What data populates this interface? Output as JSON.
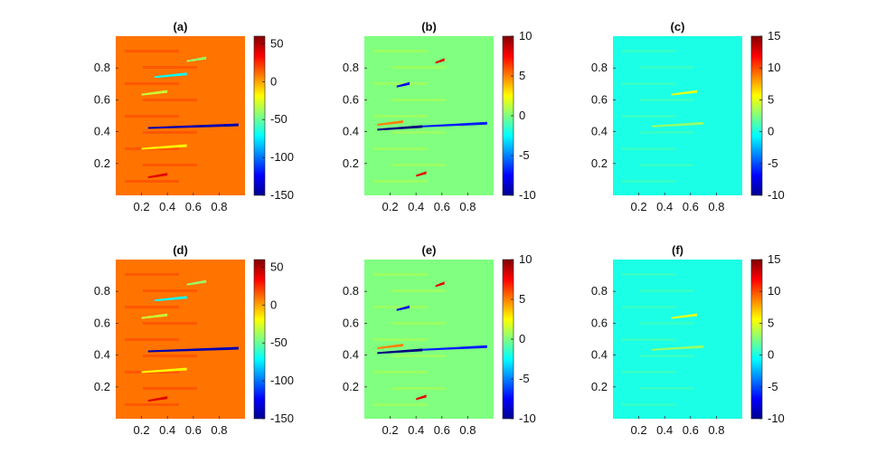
{
  "chart_data": [
    {
      "type": "heatmap",
      "panel": "a",
      "title": "(a)",
      "xticks": [
        "0.2",
        "0.4",
        "0.6",
        "0.8"
      ],
      "xtick_values": [
        0.2,
        0.4,
        0.6,
        0.8
      ],
      "yticks": [
        "0.8",
        "0.6",
        "0.4",
        "0.2"
      ],
      "ytick_values": [
        0.8,
        0.6,
        0.4,
        0.2
      ],
      "xlim": [
        0,
        1
      ],
      "ylim": [
        0,
        1
      ],
      "colorbar": {
        "ticks": [
          "50",
          "0",
          "-50",
          "-100",
          "-150"
        ],
        "tick_values": [
          50,
          0,
          -50,
          -100,
          -150
        ],
        "clim": [
          -150,
          60
        ]
      },
      "background_value": 10,
      "features": [
        {
          "x1": 0.25,
          "x2": 0.95,
          "y": 0.44,
          "value": -140
        },
        {
          "x1": 0.3,
          "x2": 0.55,
          "y": 0.76,
          "value": -70
        },
        {
          "x1": 0.55,
          "x2": 0.7,
          "y": 0.86,
          "value": -40
        },
        {
          "x1": 0.2,
          "x2": 0.4,
          "y": 0.65,
          "value": -30
        },
        {
          "x1": 0.25,
          "x2": 0.4,
          "y": 0.13,
          "value": 40
        },
        {
          "x1": 0.2,
          "x2": 0.55,
          "y": 0.31,
          "value": -20
        }
      ]
    },
    {
      "type": "heatmap",
      "panel": "b",
      "title": "(b)",
      "xticks": [
        "0.2",
        "0.4",
        "0.6",
        "0.8"
      ],
      "xtick_values": [
        0.2,
        0.4,
        0.6,
        0.8
      ],
      "yticks": [
        "0.8",
        "0.6",
        "0.4",
        "0.2"
      ],
      "ytick_values": [
        0.8,
        0.6,
        0.4,
        0.2
      ],
      "xlim": [
        0,
        1
      ],
      "ylim": [
        0,
        1
      ],
      "colorbar": {
        "ticks": [
          "10",
          "5",
          "0",
          "-5",
          "-10"
        ],
        "tick_values": [
          10,
          5,
          0,
          -5,
          -10
        ],
        "clim": [
          -10,
          10
        ]
      },
      "background_value": 0,
      "features": [
        {
          "x1": 0.1,
          "x2": 0.45,
          "y": 0.43,
          "value": -10
        },
        {
          "x1": 0.45,
          "x2": 0.95,
          "y": 0.45,
          "value": -7
        },
        {
          "x1": 0.25,
          "x2": 0.35,
          "y": 0.7,
          "value": -8
        },
        {
          "x1": 0.55,
          "x2": 0.62,
          "y": 0.85,
          "value": 8
        },
        {
          "x1": 0.4,
          "x2": 0.48,
          "y": 0.14,
          "value": 8
        },
        {
          "x1": 0.1,
          "x2": 0.3,
          "y": 0.46,
          "value": 5
        }
      ]
    },
    {
      "type": "heatmap",
      "panel": "c",
      "title": "(c)",
      "xticks": [
        "0.2",
        "0.4",
        "0.6",
        "0.8"
      ],
      "xtick_values": [
        0.2,
        0.4,
        0.6,
        0.8
      ],
      "yticks": [
        "0.8",
        "0.6",
        "0.4",
        "0.2"
      ],
      "ytick_values": [
        0.8,
        0.6,
        0.4,
        0.2
      ],
      "xlim": [
        0,
        1
      ],
      "ylim": [
        0,
        1
      ],
      "colorbar": {
        "ticks": [
          "15",
          "10",
          "5",
          "0",
          "-5",
          "-10"
        ],
        "tick_values": [
          15,
          10,
          5,
          0,
          -5,
          -10
        ],
        "clim": [
          -10,
          15
        ]
      },
      "background_value": 0,
      "features": [
        {
          "x1": 0.45,
          "x2": 0.65,
          "y": 0.65,
          "value": 5
        },
        {
          "x1": 0.3,
          "x2": 0.7,
          "y": 0.45,
          "value": 3
        }
      ]
    },
    {
      "type": "heatmap",
      "panel": "d",
      "title": "(d)",
      "xticks": [
        "0.2",
        "0.4",
        "0.6",
        "0.8"
      ],
      "xtick_values": [
        0.2,
        0.4,
        0.6,
        0.8
      ],
      "yticks": [
        "0.8",
        "0.6",
        "0.4",
        "0.2"
      ],
      "ytick_values": [
        0.8,
        0.6,
        0.4,
        0.2
      ],
      "xlim": [
        0,
        1
      ],
      "ylim": [
        0,
        1
      ],
      "colorbar": {
        "ticks": [
          "50",
          "0",
          "-50",
          "-100",
          "-150"
        ],
        "tick_values": [
          50,
          0,
          -50,
          -100,
          -150
        ],
        "clim": [
          -150,
          60
        ]
      },
      "background_value": 10,
      "features": [
        {
          "x1": 0.25,
          "x2": 0.95,
          "y": 0.44,
          "value": -140
        },
        {
          "x1": 0.3,
          "x2": 0.55,
          "y": 0.76,
          "value": -70
        },
        {
          "x1": 0.55,
          "x2": 0.7,
          "y": 0.86,
          "value": -40
        },
        {
          "x1": 0.2,
          "x2": 0.4,
          "y": 0.65,
          "value": -30
        },
        {
          "x1": 0.25,
          "x2": 0.4,
          "y": 0.13,
          "value": 40
        },
        {
          "x1": 0.2,
          "x2": 0.55,
          "y": 0.31,
          "value": -20
        }
      ]
    },
    {
      "type": "heatmap",
      "panel": "e",
      "title": "(e)",
      "xticks": [
        "0.2",
        "0.4",
        "0.6",
        "0.8"
      ],
      "xtick_values": [
        0.2,
        0.4,
        0.6,
        0.8
      ],
      "yticks": [
        "0.8",
        "0.6",
        "0.4",
        "0.2"
      ],
      "ytick_values": [
        0.8,
        0.6,
        0.4,
        0.2
      ],
      "xlim": [
        0,
        1
      ],
      "ylim": [
        0,
        1
      ],
      "colorbar": {
        "ticks": [
          "10",
          "5",
          "0",
          "-5",
          "-10"
        ],
        "tick_values": [
          10,
          5,
          0,
          -5,
          -10
        ],
        "clim": [
          -10,
          10
        ]
      },
      "background_value": 0,
      "features": [
        {
          "x1": 0.1,
          "x2": 0.45,
          "y": 0.43,
          "value": -10
        },
        {
          "x1": 0.45,
          "x2": 0.95,
          "y": 0.45,
          "value": -7
        },
        {
          "x1": 0.25,
          "x2": 0.35,
          "y": 0.7,
          "value": -8
        },
        {
          "x1": 0.55,
          "x2": 0.62,
          "y": 0.85,
          "value": 8
        },
        {
          "x1": 0.4,
          "x2": 0.48,
          "y": 0.14,
          "value": 8
        },
        {
          "x1": 0.1,
          "x2": 0.3,
          "y": 0.46,
          "value": 5
        }
      ]
    },
    {
      "type": "heatmap",
      "panel": "f",
      "title": "(f)",
      "xticks": [
        "0.2",
        "0.4",
        "0.6",
        "0.8"
      ],
      "xtick_values": [
        0.2,
        0.4,
        0.6,
        0.8
      ],
      "yticks": [
        "0.8",
        "0.6",
        "0.4",
        "0.2"
      ],
      "ytick_values": [
        0.8,
        0.6,
        0.4,
        0.2
      ],
      "xlim": [
        0,
        1
      ],
      "ylim": [
        0,
        1
      ],
      "colorbar": {
        "ticks": [
          "15",
          "10",
          "5",
          "0",
          "-5",
          "-10"
        ],
        "tick_values": [
          15,
          10,
          5,
          0,
          -5,
          -10
        ],
        "clim": [
          -10,
          15
        ]
      },
      "background_value": 0,
      "features": [
        {
          "x1": 0.45,
          "x2": 0.65,
          "y": 0.65,
          "value": 5
        },
        {
          "x1": 0.3,
          "x2": 0.7,
          "y": 0.45,
          "value": 3
        }
      ]
    }
  ]
}
